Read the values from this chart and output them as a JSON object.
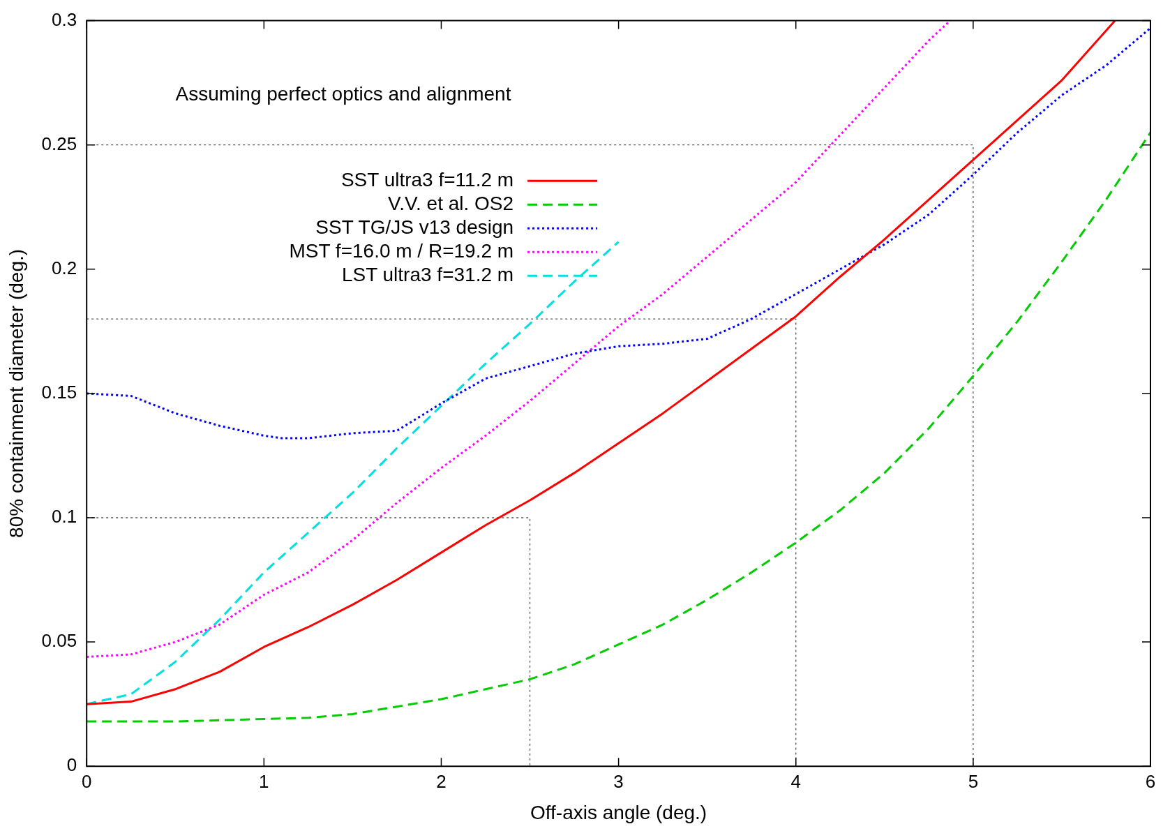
{
  "chart_data": {
    "type": "line",
    "xlabel": "Off-axis angle (deg.)",
    "ylabel": "80% containment diameter (deg.)",
    "annotations": [
      "Assuming perfect optics and alignment"
    ],
    "xlim": [
      0,
      6
    ],
    "ylim": [
      0,
      0.3
    ],
    "xticks": [
      0,
      1,
      2,
      3,
      4,
      5,
      6
    ],
    "yticks": [
      0,
      0.05,
      0.1,
      0.15,
      0.2,
      0.25,
      0.3
    ],
    "grid": false,
    "legend": "top left",
    "marker": "none",
    "series": [
      {
        "name": "SST ultra3 f=11.2 m",
        "color": "#ff0000",
        "line_style": "solid",
        "x": [
          0,
          0.25,
          0.5,
          0.75,
          1,
          1.25,
          1.5,
          1.75,
          2,
          2.25,
          2.5,
          2.75,
          3,
          3.25,
          3.5,
          3.75,
          4,
          4.25,
          4.5,
          4.75,
          5,
          5.25,
          5.5,
          5.8
        ],
        "values": [
          0.025,
          0.026,
          0.031,
          0.038,
          0.048,
          0.056,
          0.065,
          0.075,
          0.086,
          0.097,
          0.107,
          0.118,
          0.13,
          0.142,
          0.155,
          0.168,
          0.181,
          0.197,
          0.212,
          0.228,
          0.244,
          0.26,
          0.276,
          0.3
        ]
      },
      {
        "name": "V.V. et al. OS2",
        "color": "#00cc00",
        "line_style": "dashed",
        "x": [
          0,
          0.5,
          1,
          1.25,
          1.5,
          1.75,
          2,
          2.25,
          2.5,
          2.75,
          3,
          3.25,
          3.5,
          3.75,
          4,
          4.25,
          4.5,
          4.75,
          5,
          5.25,
          5.5,
          5.75,
          6
        ],
        "values": [
          0.018,
          0.018,
          0.019,
          0.0195,
          0.021,
          0.024,
          0.027,
          0.031,
          0.035,
          0.041,
          0.049,
          0.057,
          0.067,
          0.078,
          0.09,
          0.103,
          0.118,
          0.136,
          0.157,
          0.179,
          0.203,
          0.228,
          0.255
        ]
      },
      {
        "name": "SST TG/JS v13 design",
        "color": "#0000ff",
        "line_style": "dotted",
        "x": [
          0,
          0.25,
          0.5,
          0.75,
          1,
          1.1,
          1.25,
          1.5,
          1.75,
          2,
          2.25,
          2.5,
          2.75,
          3,
          3.25,
          3.5,
          3.75,
          4,
          4.25,
          4.5,
          4.75,
          5,
          5.25,
          5.5,
          5.75,
          6
        ],
        "values": [
          0.15,
          0.149,
          0.142,
          0.137,
          0.133,
          0.132,
          0.132,
          0.134,
          0.135,
          0.146,
          0.156,
          0.161,
          0.166,
          0.169,
          0.17,
          0.172,
          0.18,
          0.19,
          0.2,
          0.21,
          0.222,
          0.238,
          0.255,
          0.27,
          0.282,
          0.297
        ]
      },
      {
        "name": "MST f=16.0 m / R=19.2 m",
        "color": "#ff00ff",
        "line_style": "dotted",
        "x": [
          0,
          0.25,
          0.5,
          0.75,
          1,
          1.25,
          1.5,
          1.75,
          2,
          2.25,
          2.5,
          2.75,
          3,
          3.25,
          3.5,
          3.75,
          4,
          4.25,
          4.5,
          4.75,
          4.87
        ],
        "values": [
          0.044,
          0.045,
          0.05,
          0.057,
          0.069,
          0.078,
          0.091,
          0.106,
          0.12,
          0.133,
          0.147,
          0.162,
          0.177,
          0.19,
          0.205,
          0.22,
          0.235,
          0.254,
          0.273,
          0.292,
          0.3
        ]
      },
      {
        "name": "LST ultra3 f=31.2 m",
        "color": "#00e0e0",
        "line_style": "dashed",
        "x": [
          0,
          0.25,
          0.5,
          0.75,
          1,
          1.25,
          1.5,
          1.75,
          2,
          2.25,
          2.5,
          2.75,
          3
        ],
        "values": [
          0.025,
          0.029,
          0.042,
          0.059,
          0.078,
          0.094,
          0.11,
          0.128,
          0.145,
          0.162,
          0.178,
          0.195,
          0.211
        ]
      },
      {
        "color": "#555555",
        "line_style": "dotted",
        "x": [
          0,
          2.5,
          2.5
        ],
        "values": [
          0.1,
          0.1,
          0
        ]
      },
      {
        "color": "#555555",
        "line_style": "dotted",
        "x": [
          0,
          4,
          4
        ],
        "values": [
          0.18,
          0.18,
          0
        ]
      },
      {
        "color": "#555555",
        "line_style": "dotted",
        "x": [
          0,
          5,
          5
        ],
        "values": [
          0.25,
          0.25,
          0
        ]
      }
    ]
  }
}
